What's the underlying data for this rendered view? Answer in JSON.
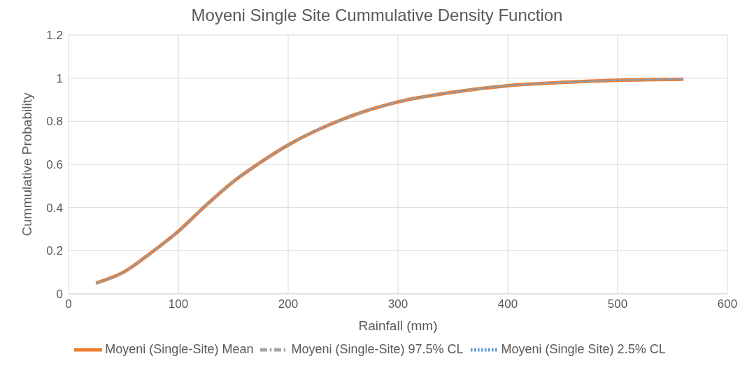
{
  "chart_data": {
    "type": "line",
    "title": "Moyeni Single Site Cummulative Density Function",
    "xlabel": "Rainfall (mm)",
    "ylabel": "Cummulative Probability",
    "x": [
      25,
      50,
      75,
      100,
      125,
      150,
      175,
      200,
      250,
      300,
      350,
      400,
      450,
      500,
      560
    ],
    "series": [
      {
        "name": "Moyeni (Single Site) 2.5% CL",
        "color": "#5b9bd5",
        "line_style": "dotted",
        "values": [
          0.05,
          0.1,
          0.19,
          0.29,
          0.41,
          0.52,
          0.61,
          0.69,
          0.81,
          0.89,
          0.935,
          0.965,
          0.98,
          0.99,
          0.995
        ]
      },
      {
        "name": "Moyeni (Single-Site) Mean",
        "color": "#ed7d31",
        "line_style": "solid",
        "values": [
          0.05,
          0.1,
          0.19,
          0.29,
          0.41,
          0.52,
          0.61,
          0.69,
          0.81,
          0.89,
          0.935,
          0.965,
          0.98,
          0.99,
          0.995
        ]
      },
      {
        "name": "Moyeni (Single-Site) 97.5% CL",
        "color": "#a5a5a5",
        "line_style": "dashed",
        "values": [
          0.05,
          0.1,
          0.19,
          0.29,
          0.41,
          0.52,
          0.61,
          0.69,
          0.81,
          0.89,
          0.935,
          0.965,
          0.98,
          0.99,
          0.995
        ]
      }
    ],
    "xlim": [
      0,
      600
    ],
    "xticks": [
      0,
      100,
      200,
      300,
      400,
      500,
      600
    ],
    "ylim": [
      0,
      1.2
    ],
    "yticks": [
      0,
      0.2,
      0.4,
      0.6,
      0.8,
      1,
      1.2
    ],
    "grid": true,
    "legend": "bottom",
    "marker": "none"
  }
}
